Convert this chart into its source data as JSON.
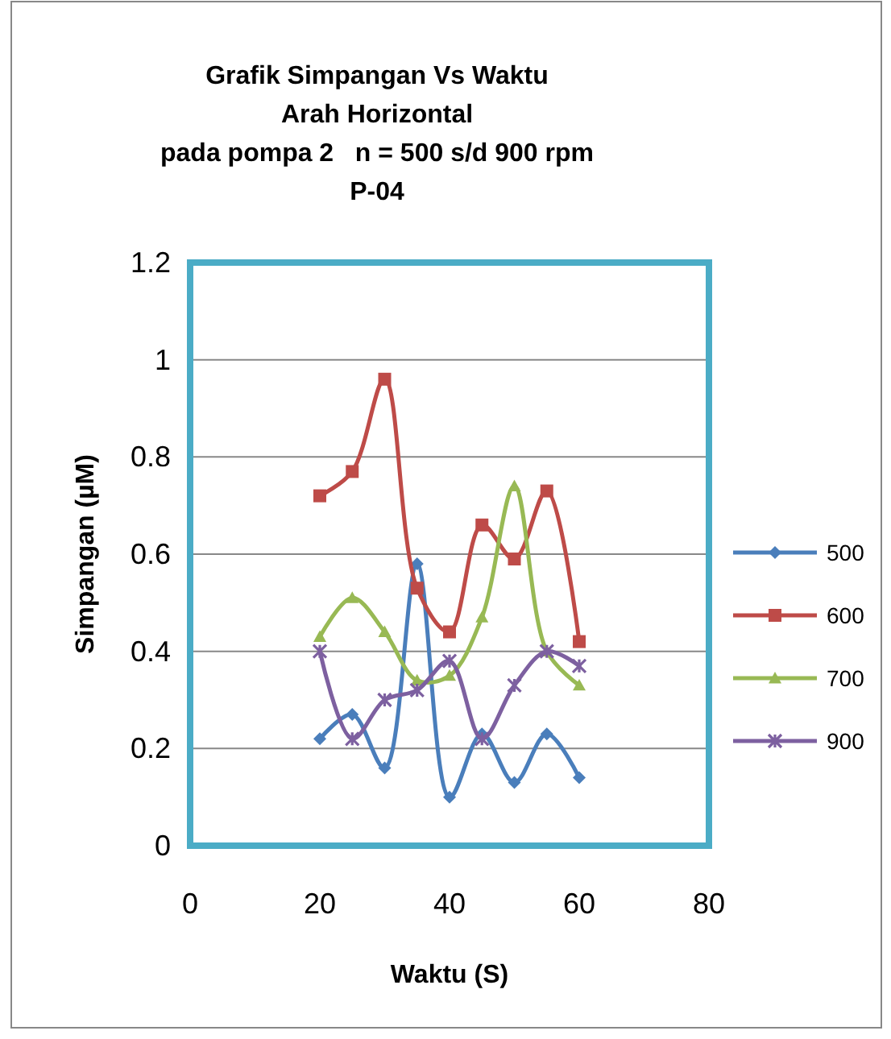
{
  "chart_data": {
    "type": "line",
    "title": "Grafik Simpangan Vs Waktu\nArah Horizontal\npada pompa 2   n = 500 s/d 900 rpm\nP-04",
    "xlabel": "Waktu (S)",
    "ylabel": "Simpangan  (µM)",
    "x": [
      20,
      25,
      30,
      35,
      40,
      45,
      50,
      55,
      60
    ],
    "xlim": [
      0,
      80
    ],
    "xticks": [
      0,
      20,
      40,
      60,
      80
    ],
    "ylim": [
      0,
      1.2
    ],
    "yticks": [
      0,
      0.2,
      0.4,
      0.6,
      0.8,
      1,
      1.2
    ],
    "grid": "y",
    "legend": "right",
    "series": [
      {
        "name": "500",
        "color": "#4a7ebb",
        "marker": "diamond",
        "values": [
          0.22,
          0.27,
          0.16,
          0.58,
          0.1,
          0.23,
          0.13,
          0.23,
          0.14
        ]
      },
      {
        "name": "600",
        "color": "#be4b48",
        "marker": "square",
        "values": [
          0.72,
          0.77,
          0.96,
          0.53,
          0.44,
          0.66,
          0.59,
          0.73,
          0.42
        ]
      },
      {
        "name": "700",
        "color": "#98b954",
        "marker": "triangle",
        "values": [
          0.43,
          0.51,
          0.44,
          0.34,
          0.35,
          0.47,
          0.74,
          0.4,
          0.33
        ]
      },
      {
        "name": "900",
        "color": "#7d60a0",
        "marker": "cross",
        "values": [
          0.4,
          0.22,
          0.3,
          0.32,
          0.38,
          0.22,
          0.33,
          0.4,
          0.37
        ]
      }
    ]
  }
}
